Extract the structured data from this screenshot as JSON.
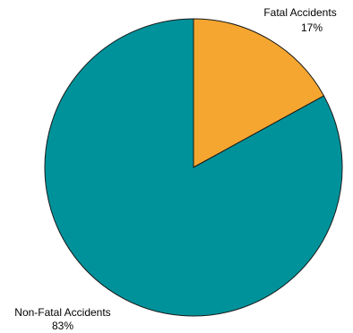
{
  "chart_data": {
    "type": "pie",
    "title": "",
    "slices": [
      {
        "label": "Fatal Accidents",
        "value": 17,
        "value_label": "17%",
        "color": "#f5a630"
      },
      {
        "label": "Non-Fatal Accidents",
        "value": 83,
        "value_label": "83%",
        "color": "#00929a"
      }
    ]
  }
}
